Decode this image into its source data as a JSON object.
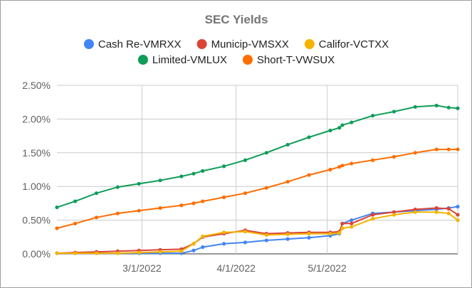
{
  "chart_data": {
    "type": "line",
    "title": "SEC Yields",
    "xlabel": "",
    "ylabel": "",
    "x_ticks": [
      "3/1/2022",
      "4/1/2022",
      "5/1/2022"
    ],
    "y_ticks": [
      "0.00%",
      "0.50%",
      "1.00%",
      "1.50%",
      "2.00%",
      "2.50%"
    ],
    "ylim": [
      0,
      2.5
    ],
    "grid": true,
    "legend_position": "top",
    "x": [
      "2022-02-01",
      "2022-02-07",
      "2022-02-14",
      "2022-02-21",
      "2022-02-28",
      "2022-03-07",
      "2022-03-14",
      "2022-03-18",
      "2022-03-21",
      "2022-03-28",
      "2022-04-04",
      "2022-04-11",
      "2022-04-18",
      "2022-04-25",
      "2022-05-02",
      "2022-05-05",
      "2022-05-06",
      "2022-05-09",
      "2022-05-16",
      "2022-05-23",
      "2022-05-30",
      "2022-06-06",
      "2022-06-10",
      "2022-06-13"
    ],
    "series": [
      {
        "name": "Cash Re-VMRXX",
        "color": "#4285f4",
        "values": [
          0.01,
          0.01,
          0.01,
          0.01,
          0.01,
          0.01,
          0.01,
          0.05,
          0.1,
          0.15,
          0.17,
          0.2,
          0.22,
          0.24,
          0.27,
          0.3,
          0.45,
          0.5,
          0.6,
          0.62,
          0.64,
          0.66,
          0.68,
          0.7
        ]
      },
      {
        "name": "Municip-VMSXX",
        "color": "#db4437",
        "values": [
          0.01,
          0.02,
          0.03,
          0.04,
          0.05,
          0.06,
          0.07,
          0.15,
          0.25,
          0.3,
          0.35,
          0.3,
          0.31,
          0.32,
          0.32,
          0.33,
          0.45,
          0.45,
          0.58,
          0.62,
          0.66,
          0.68,
          0.67,
          0.58
        ]
      },
      {
        "name": "Califor-VCTXX",
        "color": "#f4b400",
        "values": [
          0.01,
          0.01,
          0.01,
          0.01,
          0.02,
          0.03,
          0.04,
          0.15,
          0.26,
          0.32,
          0.33,
          0.28,
          0.29,
          0.3,
          0.3,
          0.31,
          0.38,
          0.4,
          0.52,
          0.58,
          0.62,
          0.62,
          0.6,
          0.5
        ]
      },
      {
        "name": "Limited-VMLUX",
        "color": "#0f9d58",
        "values": [
          0.69,
          0.78,
          0.9,
          0.99,
          1.04,
          1.09,
          1.15,
          1.19,
          1.23,
          1.3,
          1.39,
          1.5,
          1.62,
          1.73,
          1.83,
          1.87,
          1.91,
          1.95,
          2.05,
          2.11,
          2.18,
          2.2,
          2.17,
          2.16
        ]
      },
      {
        "name": "Short-T-VWSUX",
        "color": "#ff6d01",
        "values": [
          0.38,
          0.45,
          0.54,
          0.6,
          0.64,
          0.68,
          0.72,
          0.75,
          0.78,
          0.84,
          0.9,
          0.98,
          1.07,
          1.17,
          1.25,
          1.29,
          1.31,
          1.34,
          1.39,
          1.44,
          1.5,
          1.55,
          1.55,
          1.55
        ]
      }
    ]
  }
}
